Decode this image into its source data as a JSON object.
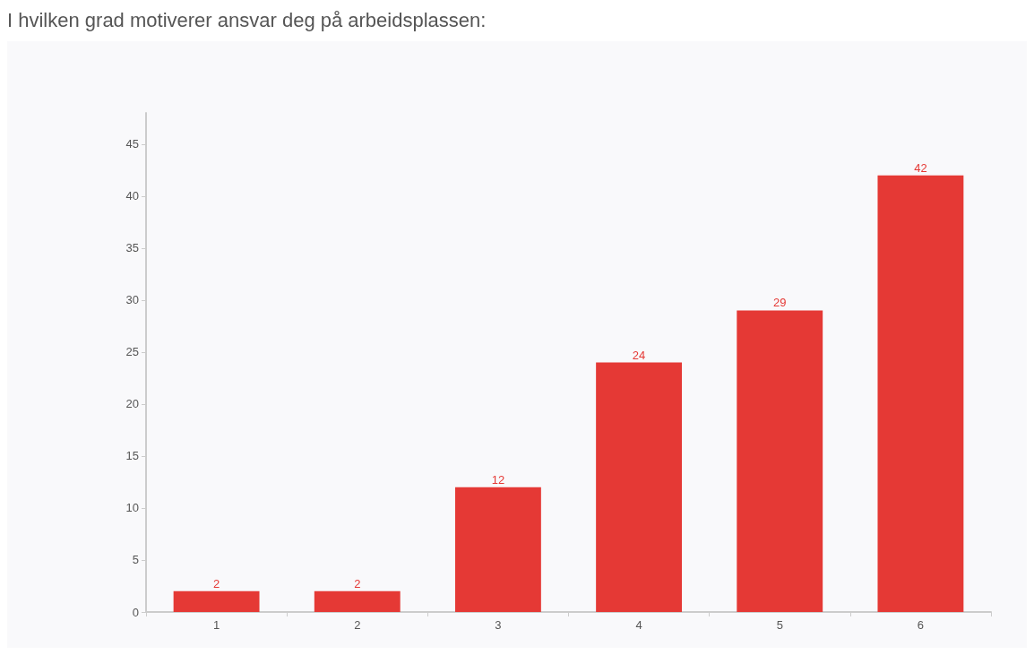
{
  "chart_data": {
    "type": "bar",
    "title": "I hvilken grad motiverer ansvar deg på arbeidsplassen:",
    "categories": [
      "1",
      "2",
      "3",
      "4",
      "5",
      "6"
    ],
    "values": [
      2,
      2,
      12,
      24,
      29,
      42
    ],
    "color": "#e53935",
    "ylim": [
      0,
      48
    ],
    "yticks": [
      0,
      5,
      10,
      15,
      20,
      25,
      30,
      35,
      40,
      45
    ],
    "grid": false,
    "data_labels": true
  }
}
